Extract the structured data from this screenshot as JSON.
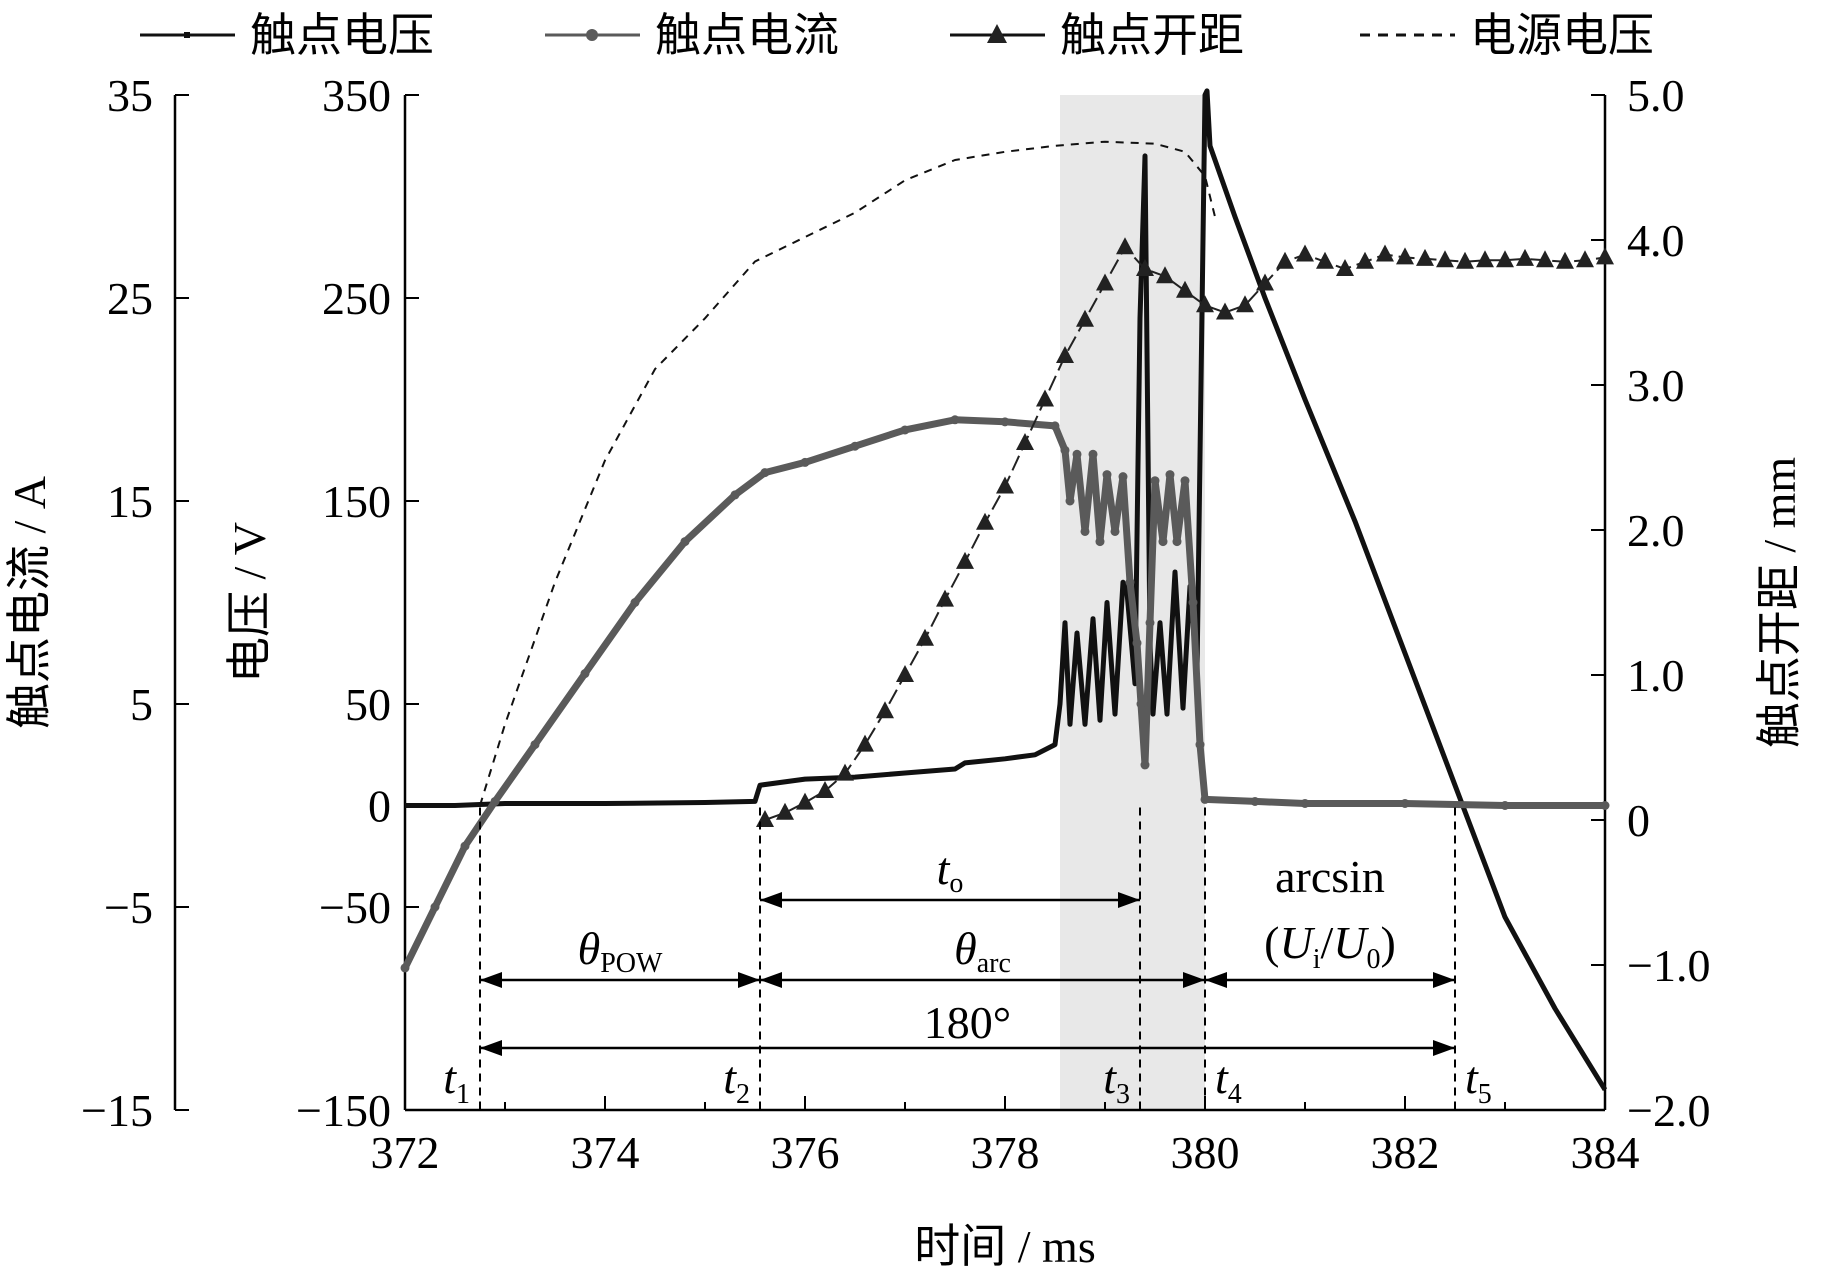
{
  "chart_data": {
    "type": "line",
    "x": {
      "label": "时间 / ms",
      "range": [
        372,
        384
      ],
      "ticks": [
        372,
        374,
        376,
        378,
        380,
        382,
        384
      ]
    },
    "axes": {
      "current": {
        "label": "触点电流 / A",
        "range": [
          -15,
          35
        ],
        "ticks": [
          -15,
          -5,
          5,
          15,
          25,
          35
        ],
        "tick_labels": [
          "−15",
          "−5",
          "5",
          "15",
          "25",
          "35"
        ]
      },
      "voltage": {
        "label": "电压 / V",
        "range": [
          -150,
          350
        ],
        "ticks": [
          -150,
          -50,
          0,
          50,
          150,
          250,
          350
        ],
        "tick_labels": [
          "−150",
          "−50",
          "0",
          "50",
          "150",
          "250",
          "350"
        ]
      },
      "gap": {
        "label": "触点开距 / mm",
        "range": [
          -2.0,
          5.0
        ],
        "ticks": [
          -2.0,
          -1.0,
          0,
          1.0,
          2.0,
          3.0,
          4.0,
          5.0
        ],
        "tick_labels": [
          "−2.0",
          "−1.0",
          "0",
          "1.0",
          "2.0",
          "3.0",
          "4.0",
          "5.0"
        ]
      }
    },
    "legend": {
      "placement": "top",
      "entries": [
        {
          "label": "触点电压",
          "style": "solid-square"
        },
        {
          "label": "触点电流",
          "style": "solid-dot"
        },
        {
          "label": "触点开距",
          "style": "triangle"
        },
        {
          "label": "电源电压",
          "style": "dashed"
        }
      ]
    },
    "series": [
      {
        "name": "触点电压",
        "axis": "voltage",
        "color": "#111111",
        "points": [
          [
            372.0,
            0
          ],
          [
            372.5,
            0
          ],
          [
            373.0,
            1
          ],
          [
            374.0,
            1
          ],
          [
            375.0,
            1.5
          ],
          [
            375.5,
            2
          ],
          [
            375.55,
            10
          ],
          [
            376.0,
            13
          ],
          [
            376.5,
            14
          ],
          [
            377.0,
            16
          ],
          [
            377.5,
            18
          ],
          [
            377.6,
            21
          ],
          [
            378.0,
            23
          ],
          [
            378.3,
            25
          ],
          [
            378.5,
            30
          ],
          [
            378.55,
            50
          ],
          [
            378.6,
            90
          ],
          [
            378.65,
            40
          ],
          [
            378.72,
            85
          ],
          [
            378.8,
            40
          ],
          [
            378.88,
            92
          ],
          [
            378.95,
            42
          ],
          [
            379.02,
            100
          ],
          [
            379.1,
            45
          ],
          [
            379.18,
            110
          ],
          [
            379.22,
            105
          ],
          [
            379.3,
            60
          ],
          [
            379.35,
            240
          ],
          [
            379.4,
            320
          ],
          [
            379.45,
            80
          ],
          [
            379.48,
            45
          ],
          [
            379.55,
            90
          ],
          [
            379.62,
            45
          ],
          [
            379.7,
            115
          ],
          [
            379.78,
            48
          ],
          [
            379.85,
            108
          ],
          [
            379.92,
            65
          ],
          [
            380.0,
            350
          ],
          [
            380.02,
            352
          ],
          [
            380.05,
            325
          ],
          [
            380.3,
            290
          ],
          [
            380.6,
            250
          ],
          [
            381.0,
            200
          ],
          [
            381.5,
            140
          ],
          [
            382.0,
            75
          ],
          [
            382.5,
            10
          ],
          [
            383.0,
            -55
          ],
          [
            383.5,
            -100
          ],
          [
            384.0,
            -140
          ]
        ]
      },
      {
        "name": "触点电流",
        "axis": "current",
        "color": "#5a5a5a",
        "points": [
          [
            372.0,
            -8.0
          ],
          [
            372.3,
            -5.0
          ],
          [
            372.6,
            -2.0
          ],
          [
            372.9,
            0.2
          ],
          [
            373.3,
            3.0
          ],
          [
            373.8,
            6.5
          ],
          [
            374.3,
            10.0
          ],
          [
            374.8,
            13.0
          ],
          [
            375.3,
            15.3
          ],
          [
            375.6,
            16.4
          ],
          [
            376.0,
            16.9
          ],
          [
            376.5,
            17.7
          ],
          [
            377.0,
            18.5
          ],
          [
            377.5,
            19.0
          ],
          [
            378.0,
            18.9
          ],
          [
            378.5,
            18.7
          ],
          [
            378.6,
            17.5
          ],
          [
            378.65,
            15.0
          ],
          [
            378.72,
            17.3
          ],
          [
            378.8,
            13.5
          ],
          [
            378.88,
            17.3
          ],
          [
            378.95,
            13.0
          ],
          [
            379.02,
            16.3
          ],
          [
            379.1,
            13.5
          ],
          [
            379.18,
            16.2
          ],
          [
            379.25,
            11.0
          ],
          [
            379.32,
            8.0
          ],
          [
            379.36,
            5.0
          ],
          [
            379.4,
            2.0
          ],
          [
            379.45,
            9.0
          ],
          [
            379.5,
            16.0
          ],
          [
            379.58,
            13.0
          ],
          [
            379.65,
            16.3
          ],
          [
            379.72,
            13.0
          ],
          [
            379.8,
            16.0
          ],
          [
            379.88,
            10.0
          ],
          [
            379.95,
            3.0
          ],
          [
            380.0,
            0.3
          ],
          [
            380.5,
            0.2
          ],
          [
            381.0,
            0.1
          ],
          [
            382.0,
            0.1
          ],
          [
            383.0,
            0.0
          ],
          [
            384.0,
            0.0
          ]
        ]
      },
      {
        "name": "触点开距",
        "axis": "gap",
        "color": "#222222",
        "points": [
          [
            375.6,
            0.0
          ],
          [
            375.8,
            0.05
          ],
          [
            376.0,
            0.12
          ],
          [
            376.2,
            0.2
          ],
          [
            376.4,
            0.32
          ],
          [
            376.6,
            0.52
          ],
          [
            376.8,
            0.75
          ],
          [
            377.0,
            1.0
          ],
          [
            377.2,
            1.25
          ],
          [
            377.4,
            1.52
          ],
          [
            377.6,
            1.78
          ],
          [
            377.8,
            2.05
          ],
          [
            378.0,
            2.3
          ],
          [
            378.2,
            2.6
          ],
          [
            378.4,
            2.9
          ],
          [
            378.6,
            3.2
          ],
          [
            378.8,
            3.45
          ],
          [
            379.0,
            3.7
          ],
          [
            379.2,
            3.95
          ],
          [
            379.4,
            3.8
          ],
          [
            379.6,
            3.75
          ],
          [
            379.8,
            3.65
          ],
          [
            380.0,
            3.55
          ],
          [
            380.2,
            3.5
          ],
          [
            380.4,
            3.55
          ],
          [
            380.6,
            3.7
          ],
          [
            380.8,
            3.85
          ],
          [
            381.0,
            3.9
          ],
          [
            381.2,
            3.85
          ],
          [
            381.4,
            3.8
          ],
          [
            381.6,
            3.85
          ],
          [
            381.8,
            3.9
          ],
          [
            382.0,
            3.88
          ],
          [
            382.2,
            3.87
          ],
          [
            382.4,
            3.86
          ],
          [
            382.6,
            3.85
          ],
          [
            382.8,
            3.86
          ],
          [
            383.0,
            3.86
          ],
          [
            383.2,
            3.87
          ],
          [
            383.4,
            3.86
          ],
          [
            383.6,
            3.85
          ],
          [
            383.8,
            3.86
          ],
          [
            384.0,
            3.88
          ]
        ]
      },
      {
        "name": "电源电压",
        "axis": "voltage",
        "color": "#111111",
        "points": [
          [
            372.75,
            0
          ],
          [
            373.0,
            40
          ],
          [
            373.5,
            110
          ],
          [
            374.0,
            170
          ],
          [
            374.5,
            215
          ],
          [
            375.0,
            240
          ],
          [
            375.5,
            268
          ],
          [
            376.0,
            280
          ],
          [
            376.5,
            292
          ],
          [
            377.0,
            308
          ],
          [
            377.5,
            318
          ],
          [
            378.0,
            322
          ],
          [
            378.5,
            325
          ],
          [
            379.0,
            327
          ],
          [
            379.5,
            326
          ],
          [
            379.8,
            322
          ],
          [
            380.0,
            310
          ],
          [
            380.1,
            290
          ]
        ]
      }
    ],
    "annotations": {
      "shaded_region": {
        "x_range": [
          378.55,
          380.0
        ],
        "color": "#e8e8e8"
      },
      "vlines": [
        {
          "x": 372.75,
          "label": "t",
          "sub": "1"
        },
        {
          "x": 375.55,
          "label": "t",
          "sub": "2"
        },
        {
          "x": 379.35,
          "label": "t",
          "sub": "3"
        },
        {
          "x": 380.0,
          "label": "t",
          "sub": "4"
        },
        {
          "x": 382.5,
          "label": "t",
          "sub": "5"
        }
      ],
      "spans": [
        {
          "x": [
            375.55,
            379.35
          ],
          "label": "t",
          "sub": "o",
          "row": 1
        },
        {
          "x": [
            372.75,
            375.55
          ],
          "label": "θ",
          "sub": "POW",
          "row": 2
        },
        {
          "x": [
            375.55,
            380.0
          ],
          "label": "θ",
          "sub": "arc",
          "row": 2
        },
        {
          "x": [
            380.0,
            382.5
          ],
          "label_lines": [
            "arcsin",
            "(U",
            "i",
            "/U",
            "0",
            ")"
          ],
          "row": 2
        },
        {
          "x": [
            372.75,
            382.5
          ],
          "label": "180°",
          "row": 3
        }
      ]
    }
  }
}
